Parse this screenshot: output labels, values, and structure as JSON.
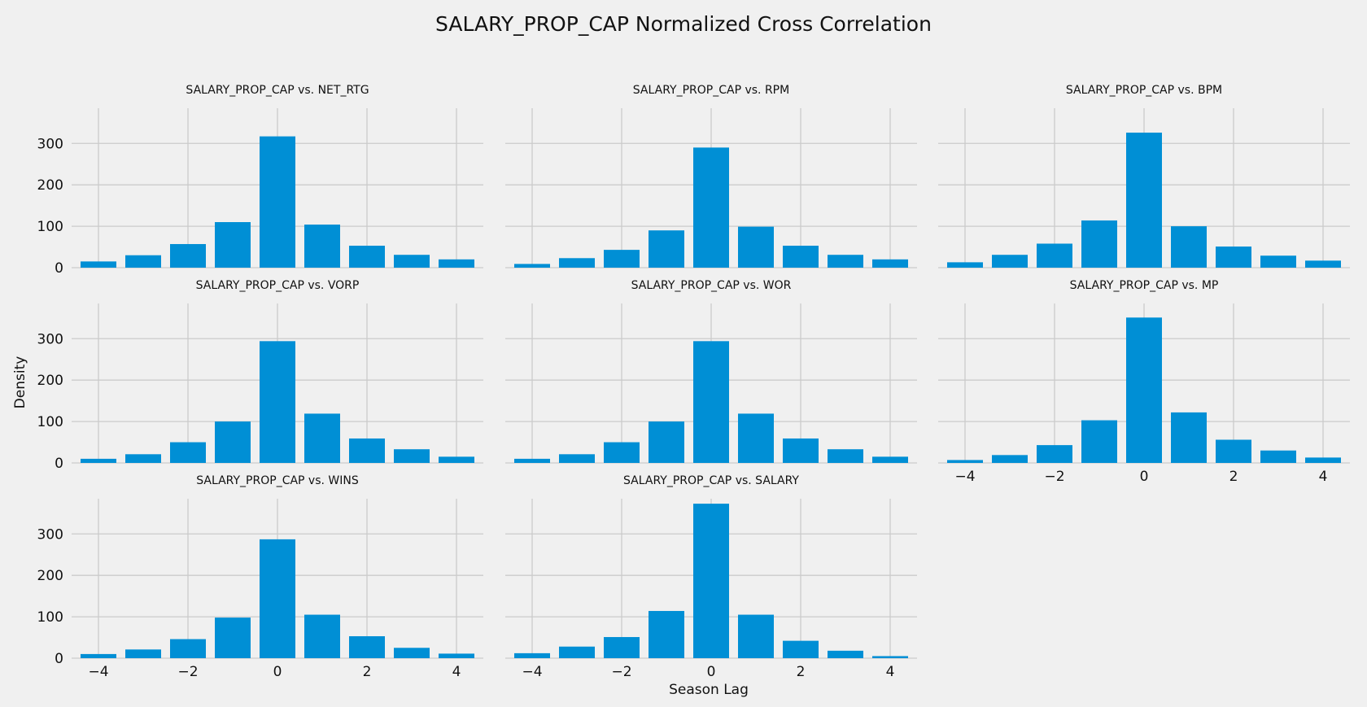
{
  "figure": {
    "title": "SALARY_PROP_CAP Normalized Cross Correlation",
    "xlabel": "Season Lag",
    "ylabel": "Density"
  },
  "chart_data": {
    "type": "bar",
    "layout": "3x3 grid of subplots, shared x and y axes",
    "x": [
      -4,
      -3,
      -2,
      -1,
      0,
      1,
      2,
      3,
      4
    ],
    "xticks": [
      -4,
      -2,
      0,
      2,
      4
    ],
    "xtick_labels": [
      "−4",
      "−2",
      "0",
      "2",
      "4"
    ],
    "yticks": [
      0,
      100,
      200,
      300
    ],
    "xlim": [
      -4.6,
      4.6
    ],
    "ylim": [
      0,
      385
    ],
    "grid": true,
    "panels": [
      {
        "title": "SALARY_PROP_CAP vs. NET_RTG",
        "values": [
          15,
          30,
          57,
          110,
          317,
          104,
          53,
          31,
          20
        ]
      },
      {
        "title": "SALARY_PROP_CAP vs. RPM",
        "values": [
          9,
          23,
          43,
          90,
          290,
          99,
          53,
          31,
          20
        ]
      },
      {
        "title": "SALARY_PROP_CAP vs. BPM",
        "values": [
          13,
          31,
          58,
          114,
          326,
          100,
          51,
          29,
          17
        ]
      },
      {
        "title": "SALARY_PROP_CAP vs. VORP",
        "values": [
          10,
          21,
          50,
          100,
          294,
          119,
          59,
          33,
          15
        ]
      },
      {
        "title": "SALARY_PROP_CAP vs. WOR",
        "values": [
          10,
          21,
          50,
          100,
          294,
          119,
          59,
          33,
          15
        ]
      },
      {
        "title": "SALARY_PROP_CAP vs. MP",
        "values": [
          7,
          19,
          43,
          103,
          351,
          122,
          56,
          30,
          13
        ]
      },
      {
        "title": "SALARY_PROP_CAP vs. WINS",
        "values": [
          10,
          21,
          46,
          98,
          287,
          105,
          53,
          25,
          11
        ]
      },
      {
        "title": "SALARY_PROP_CAP vs. SALARY",
        "values": [
          12,
          28,
          51,
          114,
          373,
          105,
          42,
          18,
          5
        ]
      }
    ]
  },
  "colors": {
    "bar": "#008fd5",
    "grid": "#cbcbcb",
    "background": "#f0f0f0"
  }
}
